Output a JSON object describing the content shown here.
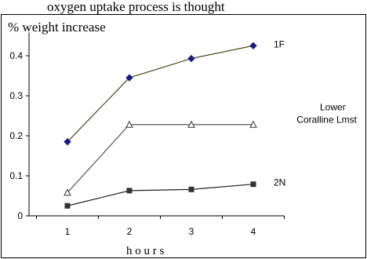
{
  "header_text": "oxygen uptake process is thought",
  "chart_data": {
    "type": "line",
    "title": "% weight increase",
    "xlabel": "h o u r s",
    "ylabel": "",
    "x": [
      1,
      2,
      3,
      4
    ],
    "x_tick_labels": [
      "1",
      "2",
      "3",
      "4"
    ],
    "xlim": [
      0.5,
      4.5
    ],
    "ylim": [
      0,
      0.45
    ],
    "y_tick_labels": [
      "0",
      "0.1",
      "0.2",
      "0.3",
      "0.4"
    ],
    "y_ticks": [
      0,
      0.1,
      0.2,
      0.3,
      0.4
    ],
    "grid": false,
    "legend": "inline labels at line ends",
    "series": [
      {
        "name": "1F",
        "values": [
          0.185,
          0.345,
          0.393,
          0.425
        ],
        "color": "#4a4a1c",
        "marker": "diamond",
        "marker_color": "#1a1a8c",
        "label_lines": [
          "1F"
        ]
      },
      {
        "name": "Lower Coralline Lmst",
        "values": [
          0.058,
          0.228,
          0.228,
          0.228
        ],
        "color": "#5a5a5a",
        "marker": "triangle-open",
        "marker_color": "#333333",
        "label_lines": [
          "Lower",
          "Coralline Lmst"
        ]
      },
      {
        "name": "2N",
        "values": [
          0.025,
          0.063,
          0.066,
          0.079
        ],
        "color": "#222222",
        "marker": "square",
        "marker_color": "#333333",
        "label_lines": [
          "2N"
        ]
      }
    ]
  }
}
